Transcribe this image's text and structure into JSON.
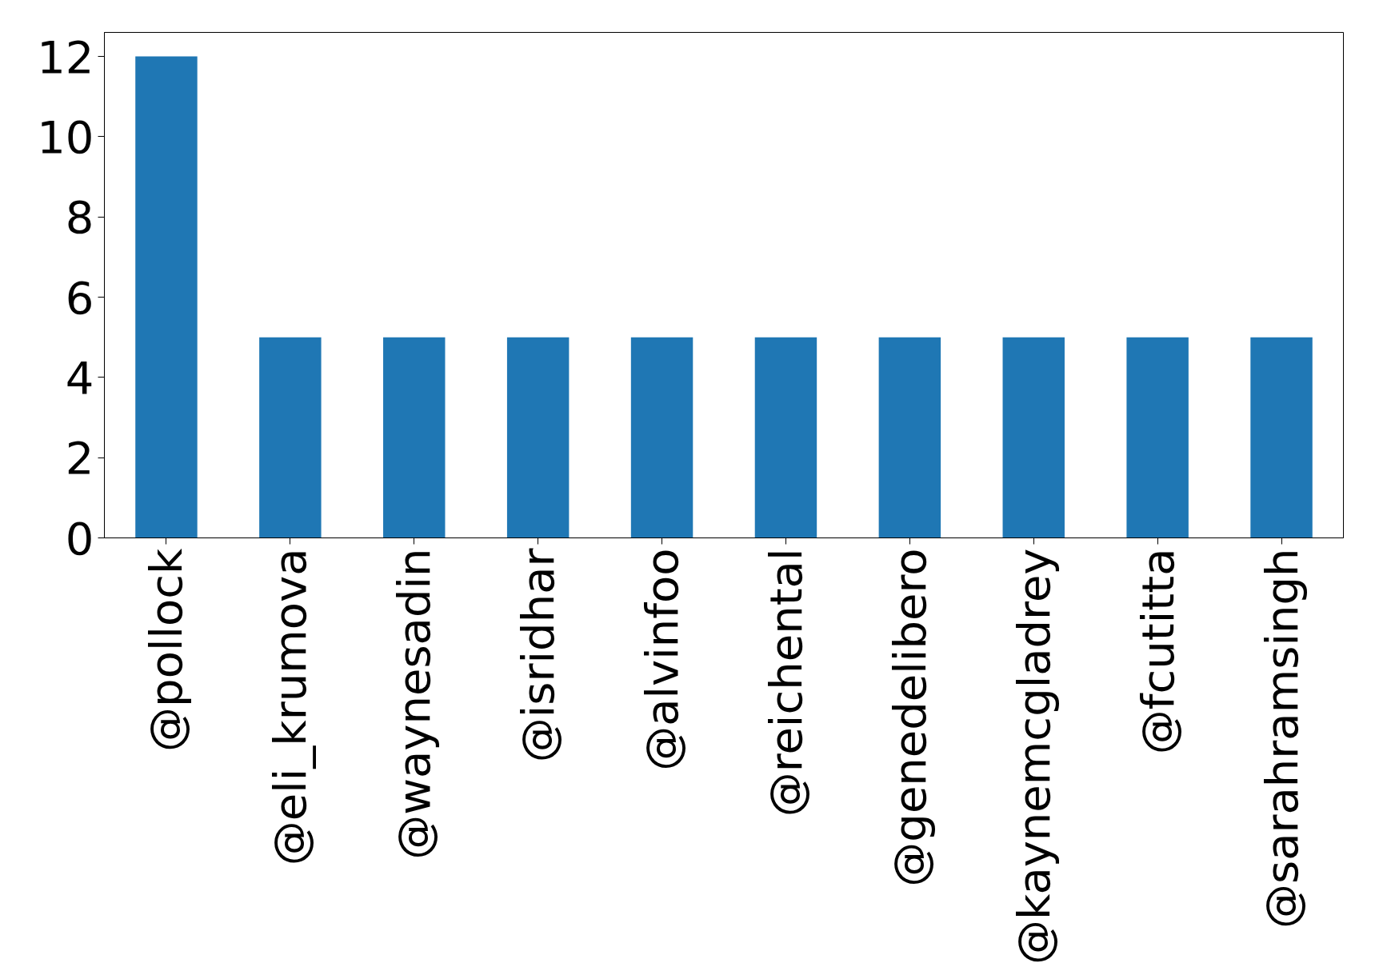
{
  "chart_data": {
    "type": "bar",
    "categories": [
      "@pollock",
      "@eli_krumova",
      "@waynesadin",
      "@isridhar",
      "@alvinfoo",
      "@reichental",
      "@genedelibero",
      "@kaynemcgladrey",
      "@fcutitta",
      "@sarahramsingh"
    ],
    "values": [
      12,
      5,
      5,
      5,
      5,
      5,
      5,
      5,
      5,
      5
    ],
    "color": "#1f77b4",
    "ylim": [
      0,
      12.6
    ],
    "yticks": [
      0,
      2,
      4,
      6,
      8,
      10,
      12
    ],
    "grid": false
  }
}
